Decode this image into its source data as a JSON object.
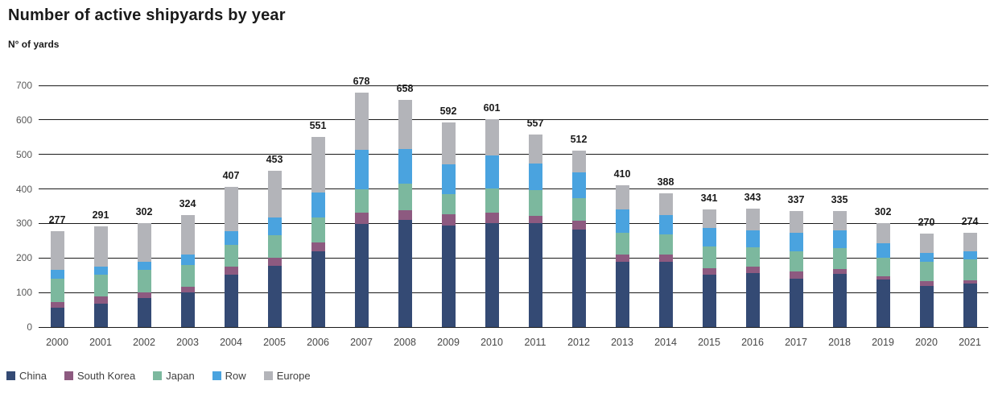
{
  "header": {
    "title": "Number of active shipyards by year",
    "y_axis_label": "N° of yards"
  },
  "chart_data": {
    "type": "bar",
    "stacked": true,
    "title": "Number of active shipyards by year",
    "ylabel": "N° of yards",
    "xlabel": "",
    "ylim": [
      0,
      700
    ],
    "yticks": [
      0,
      100,
      200,
      300,
      400,
      500,
      600,
      700
    ],
    "grid": "horizontal",
    "legend_position": "bottom",
    "categories": [
      2000,
      2001,
      2002,
      2003,
      2004,
      2005,
      2006,
      2007,
      2008,
      2009,
      2010,
      2011,
      2012,
      2013,
      2014,
      2015,
      2016,
      2017,
      2018,
      2019,
      2020,
      2021
    ],
    "series": [
      {
        "key": "china",
        "name": "China",
        "color": "#344a74",
        "values": [
          55,
          68,
          84,
          100,
          152,
          178,
          220,
          298,
          310,
          293,
          301,
          300,
          283,
          190,
          190,
          152,
          156,
          140,
          153,
          137,
          120,
          125
        ]
      },
      {
        "key": "south-korea",
        "name": "South Korea",
        "color": "#8d5a80",
        "values": [
          17,
          21,
          16,
          16,
          22,
          23,
          26,
          33,
          29,
          33,
          31,
          23,
          26,
          20,
          20,
          18,
          19,
          22,
          15,
          11,
          13,
          11
        ]
      },
      {
        "key": "japan",
        "name": "Japan",
        "color": "#7cb89e",
        "values": [
          67,
          63,
          66,
          64,
          64,
          65,
          72,
          69,
          76,
          60,
          70,
          73,
          64,
          64,
          58,
          63,
          57,
          57,
          60,
          53,
          55,
          60
        ]
      },
      {
        "key": "row",
        "name": "Row",
        "color": "#4aa3df",
        "values": [
          26,
          22,
          24,
          30,
          39,
          51,
          71,
          114,
          100,
          85,
          95,
          77,
          74,
          66,
          57,
          55,
          47,
          54,
          52,
          42,
          26,
          23
        ]
      },
      {
        "key": "europe",
        "name": "Europe",
        "color": "#b3b4b9",
        "values": [
          112,
          117,
          112,
          114,
          130,
          136,
          162,
          164,
          143,
          121,
          104,
          84,
          65,
          70,
          63,
          53,
          64,
          64,
          55,
          59,
          56,
          55
        ]
      }
    ],
    "totals": [
      277,
      291,
      302,
      324,
      407,
      453,
      551,
      678,
      658,
      592,
      601,
      557,
      512,
      410,
      388,
      341,
      343,
      337,
      335,
      302,
      270,
      274
    ]
  },
  "style": {
    "gridline_color": "#1a1a1a",
    "value_label_color": "#1a1a1a",
    "tick_label_color": "#595959"
  }
}
